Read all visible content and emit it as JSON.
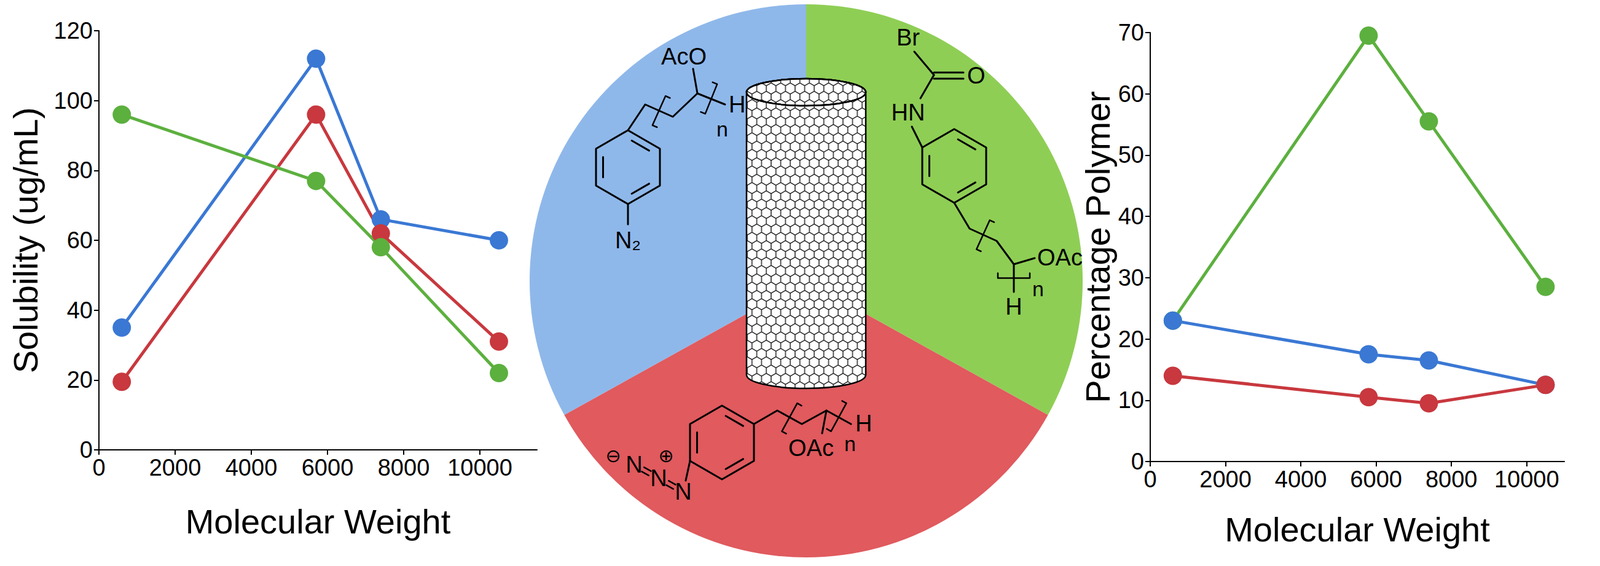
{
  "chart_data": [
    {
      "type": "line",
      "xlabel": "Molecular Weight",
      "ylabel": "Solubility (ug/mL)",
      "xlim": [
        0,
        11500
      ],
      "xticks": [
        0,
        2000,
        4000,
        6000,
        8000,
        10000
      ],
      "ylim": [
        0,
        120
      ],
      "yticks": [
        0,
        20,
        40,
        60,
        80,
        100,
        120
      ],
      "grid": false,
      "marker": "circle",
      "x": [
        600,
        5700,
        7400,
        10500
      ],
      "series": [
        {
          "color": "#3a78d4",
          "values": [
            35,
            112,
            66,
            60
          ]
        },
        {
          "color": "#c8383e",
          "values": [
            19.5,
            96,
            62,
            31
          ]
        },
        {
          "color": "#5cb03e",
          "values": [
            96,
            77,
            58,
            22
          ]
        }
      ]
    },
    {
      "type": "line",
      "xlabel": "Molecular Weight",
      "ylabel": "Percentage Polymer",
      "xlim": [
        0,
        11000
      ],
      "xticks": [
        0,
        2000,
        4000,
        6000,
        8000,
        10000
      ],
      "ylim": [
        0,
        70
      ],
      "yticks": [
        0,
        10,
        20,
        30,
        40,
        50,
        60,
        70
      ],
      "grid": false,
      "marker": "circle",
      "x": [
        600,
        5800,
        7400,
        10500
      ],
      "series": [
        {
          "color": "#5cb03e",
          "values": [
            23,
            69.5,
            55.5,
            28.5
          ]
        },
        {
          "color": "#3a78d4",
          "values": [
            23,
            17.5,
            16.5,
            12.5
          ]
        },
        {
          "color": "#c8383e",
          "values": [
            14,
            10.5,
            9.5,
            12.5
          ]
        }
      ]
    }
  ],
  "diagram": {
    "diazonium_sector": {
      "color": "#8fb8ea",
      "acetate": "AcO",
      "repeat": "n",
      "end": "H",
      "diazonium": "N₂"
    },
    "bromoacetamide_sector": {
      "color": "#8fce55",
      "bromine": "Br",
      "carbonyl": "O",
      "amide": "HN",
      "acetate": "OAc",
      "repeat": "n",
      "end": "H"
    },
    "azide_sector": {
      "color": "#e05a5e",
      "acetate": "OAc",
      "repeat": "n",
      "end": "H",
      "azide": [
        "N",
        "N",
        "N"
      ],
      "charges": [
        "⊖",
        "⊕"
      ]
    }
  }
}
